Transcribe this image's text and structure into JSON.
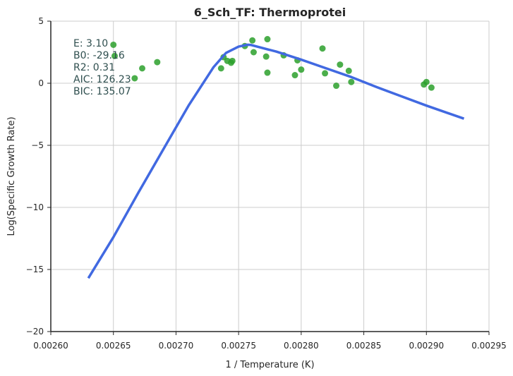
{
  "chart_data": {
    "type": "scatter",
    "title": "6_Sch_TF: Thermoprotei",
    "xlabel": "1 / Temperature (K)",
    "ylabel": "Log(Specific Growth Rate)",
    "xlim": [
      0.0026,
      0.00295
    ],
    "ylim": [
      -20,
      5
    ],
    "xticks": [
      0.0026,
      0.00265,
      0.0027,
      0.00275,
      0.0028,
      0.00285,
      0.0029,
      0.00295
    ],
    "xtick_labels": [
      "0.00260",
      "0.00265",
      "0.00270",
      "0.00275",
      "0.00280",
      "0.00285",
      "0.00290",
      "0.00295"
    ],
    "yticks": [
      5,
      0,
      -5,
      -10,
      -15,
      -20
    ],
    "ytick_labels": [
      "5",
      "0",
      "−5",
      "−10",
      "−15",
      "−20"
    ],
    "grid": true,
    "annotations": [
      "E:  3.10",
      "B0:  -29.16",
      "R2:  0.31",
      "AIC: 126.23",
      "BIC: 135.07"
    ],
    "series": [
      {
        "kind": "scatter",
        "color": "#2ca02c",
        "points": [
          [
            0.00265,
            3.1
          ],
          [
            0.002651,
            2.2
          ],
          [
            0.002667,
            0.4
          ],
          [
            0.002673,
            1.2
          ],
          [
            0.002685,
            1.7
          ],
          [
            0.002736,
            1.2
          ],
          [
            0.002738,
            2.1
          ],
          [
            0.002741,
            1.8
          ],
          [
            0.002744,
            1.65
          ],
          [
            0.002745,
            1.8
          ],
          [
            0.002755,
            3.0
          ],
          [
            0.002761,
            3.45
          ],
          [
            0.002762,
            2.5
          ],
          [
            0.002772,
            2.15
          ],
          [
            0.002773,
            3.55
          ],
          [
            0.002773,
            0.85
          ],
          [
            0.002786,
            2.25
          ],
          [
            0.002795,
            0.65
          ],
          [
            0.002797,
            1.85
          ],
          [
            0.0028,
            1.1
          ],
          [
            0.002817,
            2.8
          ],
          [
            0.002819,
            0.8
          ],
          [
            0.002828,
            -0.2
          ],
          [
            0.002831,
            1.5
          ],
          [
            0.002838,
            1.0
          ],
          [
            0.00284,
            0.1
          ],
          [
            0.002898,
            -0.1
          ],
          [
            0.0029,
            0.1
          ],
          [
            0.002904,
            -0.35
          ]
        ]
      },
      {
        "kind": "line",
        "color": "#4169e1",
        "points": [
          [
            0.00263,
            -15.7
          ],
          [
            0.00265,
            -12.4
          ],
          [
            0.00267,
            -8.8
          ],
          [
            0.00269,
            -5.3
          ],
          [
            0.00271,
            -1.8
          ],
          [
            0.00273,
            1.3
          ],
          [
            0.00274,
            2.45
          ],
          [
            0.00275,
            2.95
          ],
          [
            0.002757,
            3.1
          ],
          [
            0.00276,
            3.08
          ],
          [
            0.00278,
            2.55
          ],
          [
            0.0028,
            1.9
          ],
          [
            0.00282,
            1.2
          ],
          [
            0.00284,
            0.5
          ],
          [
            0.00286,
            -0.3
          ],
          [
            0.00288,
            -1.05
          ],
          [
            0.0029,
            -1.8
          ],
          [
            0.00293,
            -2.85
          ]
        ]
      }
    ]
  }
}
